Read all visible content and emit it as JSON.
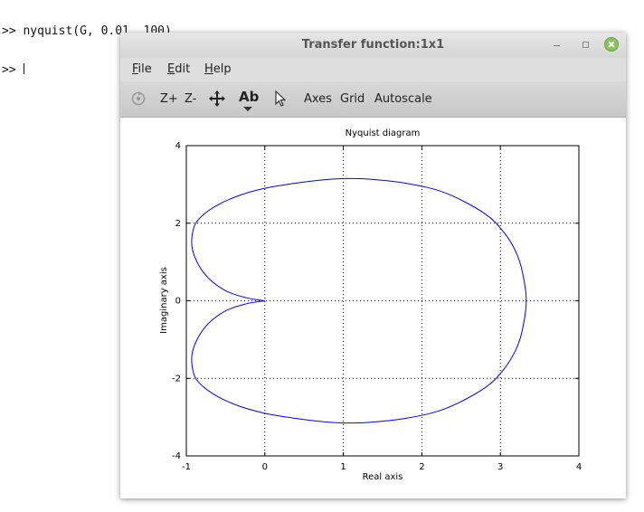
{
  "terminal": {
    "lines": [
      ">> nyquist(G, 0.01, 100)",
      ">> "
    ]
  },
  "window": {
    "title": "Transfer function:1x1",
    "menu": [
      {
        "label": "File",
        "mnemonic": "F",
        "rest": "ile"
      },
      {
        "label": "Edit",
        "mnemonic": "E",
        "rest": "dit"
      },
      {
        "label": "Help",
        "mnemonic": "H",
        "rest": "elp"
      }
    ],
    "toolbar": {
      "zoom_in": "Z+",
      "zoom_out": "Z-",
      "text_tool": "Ab",
      "axes": "Axes",
      "grid": "Grid",
      "autoscale": "Autoscale"
    },
    "close_color": "#8cbf5e"
  },
  "chart_data": {
    "type": "line",
    "title": "Nyquist diagram",
    "xlabel": "Real axis",
    "ylabel": "Imaginary axis",
    "xlim": [
      -1,
      4
    ],
    "ylim": [
      -4,
      4
    ],
    "xticks": [
      -1,
      0,
      1,
      2,
      3,
      4
    ],
    "yticks": [
      -4,
      -2,
      0,
      2,
      4
    ],
    "grid": true,
    "series": [
      {
        "color": "#0000ff",
        "x": [
          0.0,
          -0.24,
          -0.52,
          -0.77,
          -0.92,
          -0.91,
          -0.81,
          -0.6,
          -0.32,
          0.0,
          0.35,
          0.75,
          1.0,
          1.3,
          1.8,
          2.3,
          2.8,
          3.05,
          3.2,
          3.28,
          3.33,
          3.28,
          3.2,
          3.05,
          2.8,
          2.3,
          1.8,
          1.3,
          1.0,
          0.75,
          0.35,
          0.0,
          -0.32,
          -0.6,
          -0.81,
          -0.91,
          -0.92,
          -0.77,
          -0.52,
          -0.24,
          0.0
        ],
        "y": [
          0.0,
          0.08,
          0.28,
          0.7,
          1.3,
          1.85,
          2.17,
          2.47,
          2.72,
          2.9,
          3.02,
          3.12,
          3.15,
          3.14,
          3.03,
          2.78,
          2.25,
          1.75,
          1.25,
          0.75,
          0.0,
          -0.75,
          -1.25,
          -1.75,
          -2.25,
          -2.78,
          -3.03,
          -3.14,
          -3.15,
          -3.12,
          -3.02,
          -2.9,
          -2.72,
          -2.47,
          -2.17,
          -1.85,
          -1.3,
          -0.7,
          -0.28,
          -0.08,
          0.0
        ]
      }
    ]
  }
}
